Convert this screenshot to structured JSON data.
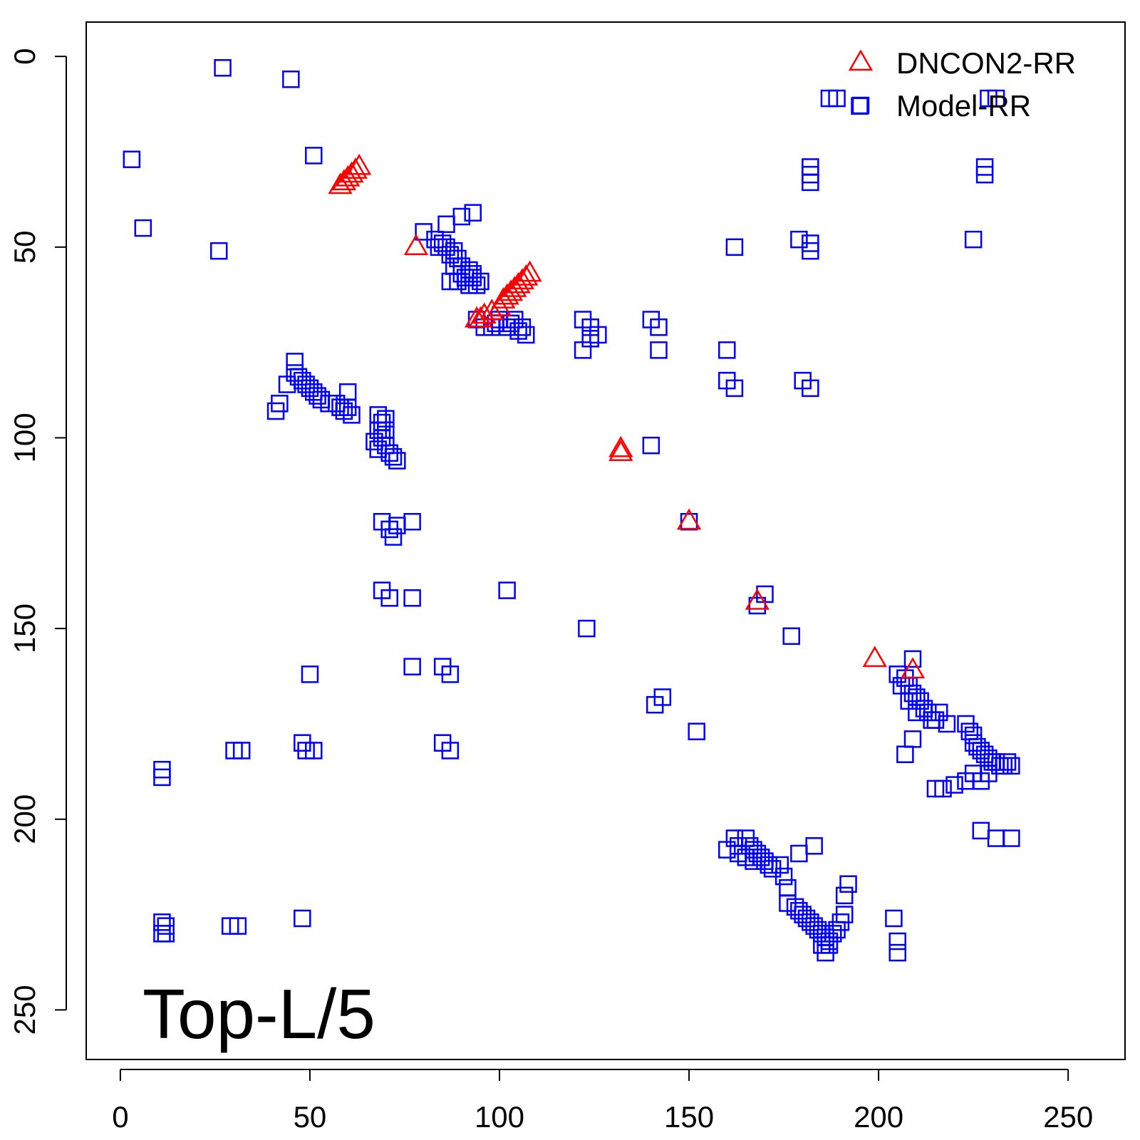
{
  "chart_data": {
    "type": "scatter",
    "title": "",
    "xlabel": "",
    "ylabel": "",
    "xlim": [
      -9,
      265
    ],
    "ylim": [
      263,
      -9
    ],
    "y_reversed": true,
    "xticks": [
      0,
      50,
      100,
      150,
      200,
      250
    ],
    "yticks": [
      0,
      50,
      100,
      150,
      200,
      250
    ],
    "grid": false,
    "legend_position": "top-right",
    "annotation": "Top-L/5",
    "series": [
      {
        "name": "DNCON2-RR",
        "marker": "triangle",
        "color": "#ff0000",
        "points": [
          [
            58,
            34
          ],
          [
            59,
            33
          ],
          [
            60,
            32
          ],
          [
            61,
            31
          ],
          [
            62,
            30
          ],
          [
            63,
            29
          ],
          [
            78,
            50
          ],
          [
            94,
            69
          ],
          [
            95,
            69
          ],
          [
            96,
            68
          ],
          [
            98,
            67
          ],
          [
            100,
            66
          ],
          [
            101,
            64
          ],
          [
            102,
            63
          ],
          [
            103,
            62
          ],
          [
            104,
            61
          ],
          [
            105,
            60
          ],
          [
            106,
            59
          ],
          [
            107,
            58
          ],
          [
            108,
            57
          ],
          [
            132,
            104
          ],
          [
            132,
            103
          ],
          [
            150,
            122
          ],
          [
            168,
            143
          ],
          [
            199,
            158
          ],
          [
            209,
            161
          ]
        ]
      },
      {
        "name": "Model-RR",
        "marker": "square",
        "color": "#0000ff",
        "points": [
          [
            27,
            3
          ],
          [
            45,
            6
          ],
          [
            3,
            27
          ],
          [
            51,
            26
          ],
          [
            6,
            45
          ],
          [
            26,
            51
          ],
          [
            80,
            46
          ],
          [
            86,
            44
          ],
          [
            90,
            42
          ],
          [
            93,
            41
          ],
          [
            83,
            48
          ],
          [
            84,
            50
          ],
          [
            85,
            49
          ],
          [
            86,
            50
          ],
          [
            87,
            52
          ],
          [
            88,
            51
          ],
          [
            89,
            53
          ],
          [
            90,
            55
          ],
          [
            87,
            59
          ],
          [
            89,
            59
          ],
          [
            91,
            58
          ],
          [
            92,
            60
          ],
          [
            93,
            58
          ],
          [
            94,
            60
          ],
          [
            95,
            59
          ],
          [
            88,
            55
          ],
          [
            90,
            57
          ],
          [
            92,
            56
          ],
          [
            93,
            57
          ],
          [
            94,
            69
          ],
          [
            96,
            71
          ],
          [
            98,
            71
          ],
          [
            100,
            69
          ],
          [
            102,
            71
          ],
          [
            104,
            69
          ],
          [
            106,
            71
          ],
          [
            107,
            73
          ],
          [
            99,
            70
          ],
          [
            103,
            70
          ],
          [
            105,
            72
          ],
          [
            122,
            69
          ],
          [
            124,
            71
          ],
          [
            124,
            74
          ],
          [
            126,
            73
          ],
          [
            122,
            77
          ],
          [
            140,
            69
          ],
          [
            142,
            71
          ],
          [
            142,
            77
          ],
          [
            160,
            77
          ],
          [
            160,
            85
          ],
          [
            162,
            87
          ],
          [
            179,
            48
          ],
          [
            182,
            49
          ],
          [
            182,
            51
          ],
          [
            182,
            29
          ],
          [
            182,
            31
          ],
          [
            182,
            33
          ],
          [
            162,
            50
          ],
          [
            180,
            85
          ],
          [
            182,
            87
          ],
          [
            187,
            11
          ],
          [
            189,
            11
          ],
          [
            195,
            13
          ],
          [
            229,
            11
          ],
          [
            231,
            11
          ],
          [
            228,
            29
          ],
          [
            228,
            31
          ],
          [
            225,
            48
          ],
          [
            46,
            80
          ],
          [
            46,
            83
          ],
          [
            47,
            84
          ],
          [
            48,
            85
          ],
          [
            49,
            86
          ],
          [
            50,
            87
          ],
          [
            51,
            88
          ],
          [
            52,
            89
          ],
          [
            53,
            90
          ],
          [
            55,
            91
          ],
          [
            57,
            91
          ],
          [
            58,
            92
          ],
          [
            59,
            93
          ],
          [
            60,
            88
          ],
          [
            60,
            92
          ],
          [
            61,
            94
          ],
          [
            42,
            91
          ],
          [
            41,
            93
          ],
          [
            44,
            86
          ],
          [
            68,
            94
          ],
          [
            69,
            96
          ],
          [
            70,
            95
          ],
          [
            68,
            98
          ],
          [
            69,
            100
          ],
          [
            67,
            101
          ],
          [
            68,
            103
          ],
          [
            70,
            102
          ],
          [
            71,
            104
          ],
          [
            72,
            105
          ],
          [
            73,
            106
          ],
          [
            70,
            98
          ],
          [
            69,
            122
          ],
          [
            71,
            124
          ],
          [
            73,
            123
          ],
          [
            72,
            126
          ],
          [
            77,
            122
          ],
          [
            69,
            140
          ],
          [
            71,
            142
          ],
          [
            77,
            142
          ],
          [
            102,
            140
          ],
          [
            140,
            102
          ],
          [
            77,
            160
          ],
          [
            85,
            160
          ],
          [
            87,
            162
          ],
          [
            50,
            162
          ],
          [
            48,
            180
          ],
          [
            49,
            182
          ],
          [
            51,
            182
          ],
          [
            85,
            180
          ],
          [
            87,
            182
          ],
          [
            30,
            182
          ],
          [
            32,
            182
          ],
          [
            11,
            187
          ],
          [
            11,
            189
          ],
          [
            11,
            227
          ],
          [
            12,
            228
          ],
          [
            11,
            230
          ],
          [
            12,
            230
          ],
          [
            29,
            228
          ],
          [
            31,
            228
          ],
          [
            48,
            226
          ],
          [
            123,
            150
          ],
          [
            177,
            152
          ],
          [
            150,
            122
          ],
          [
            170,
            141
          ],
          [
            168,
            144
          ],
          [
            143,
            168
          ],
          [
            141,
            170
          ],
          [
            152,
            177
          ],
          [
            209,
            158
          ],
          [
            205,
            162
          ],
          [
            207,
            163
          ],
          [
            208,
            165
          ],
          [
            209,
            167
          ],
          [
            210,
            168
          ],
          [
            211,
            169
          ],
          [
            212,
            171
          ],
          [
            213,
            172
          ],
          [
            214,
            174
          ],
          [
            215,
            174
          ],
          [
            216,
            172
          ],
          [
            206,
            165
          ],
          [
            208,
            169
          ],
          [
            210,
            172
          ],
          [
            209,
            179
          ],
          [
            207,
            183
          ],
          [
            218,
            175
          ],
          [
            223,
            175
          ],
          [
            224,
            177
          ],
          [
            225,
            178
          ],
          [
            225,
            180
          ],
          [
            226,
            181
          ],
          [
            227,
            182
          ],
          [
            228,
            183
          ],
          [
            229,
            184
          ],
          [
            230,
            185
          ],
          [
            231,
            185
          ],
          [
            232,
            186
          ],
          [
            233,
            186
          ],
          [
            234,
            185
          ],
          [
            235,
            186
          ],
          [
            225,
            188
          ],
          [
            227,
            190
          ],
          [
            229,
            188
          ],
          [
            223,
            190
          ],
          [
            220,
            191
          ],
          [
            217,
            192
          ],
          [
            215,
            192
          ],
          [
            227,
            203
          ],
          [
            231,
            205
          ],
          [
            235,
            205
          ],
          [
            160,
            208
          ],
          [
            162,
            205
          ],
          [
            163,
            207
          ],
          [
            165,
            205
          ],
          [
            166,
            207
          ],
          [
            167,
            208
          ],
          [
            168,
            209
          ],
          [
            169,
            210
          ],
          [
            170,
            211
          ],
          [
            171,
            212
          ],
          [
            172,
            213
          ],
          [
            174,
            212
          ],
          [
            175,
            215
          ],
          [
            163,
            209
          ],
          [
            165,
            210
          ],
          [
            167,
            211
          ],
          [
            176,
            218
          ],
          [
            176,
            222
          ],
          [
            178,
            223
          ],
          [
            179,
            224
          ],
          [
            180,
            225
          ],
          [
            181,
            226
          ],
          [
            182,
            227
          ],
          [
            183,
            228
          ],
          [
            184,
            229
          ],
          [
            185,
            230
          ],
          [
            186,
            231
          ],
          [
            187,
            232
          ],
          [
            188,
            230
          ],
          [
            189,
            229
          ],
          [
            190,
            227
          ],
          [
            191,
            225
          ],
          [
            191,
            220
          ],
          [
            192,
            217
          ],
          [
            183,
            207
          ],
          [
            179,
            209
          ],
          [
            185,
            233
          ],
          [
            186,
            235
          ],
          [
            187,
            233
          ],
          [
            204,
            226
          ],
          [
            205,
            232
          ],
          [
            205,
            235
          ]
        ]
      }
    ]
  }
}
